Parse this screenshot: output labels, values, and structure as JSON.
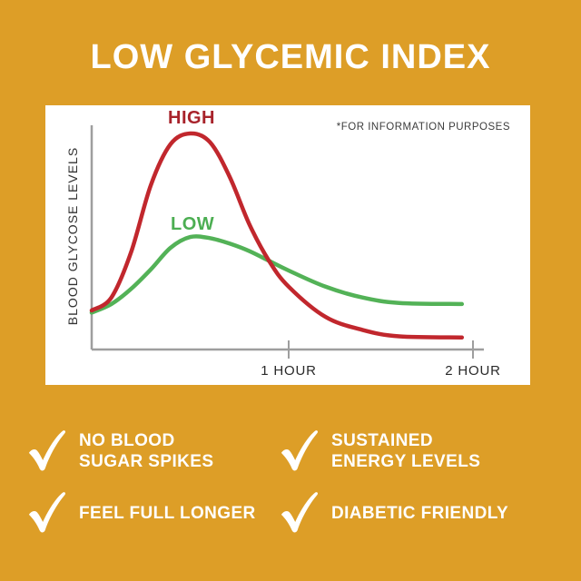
{
  "title": "LOW GLYCEMIC INDEX",
  "chart": {
    "note": "*FOR INFORMATION PURPOSES",
    "y_axis_label": "BLOOD GLYCOSE LEVELS"
  },
  "chart_data": {
    "type": "line",
    "title": "LOW GLYCEMIC INDEX",
    "ylabel": "BLOOD GLYCOSE LEVELS",
    "xlabel": "",
    "x_unit": "hours",
    "x_tick_labels": [
      "1 HOUR",
      "2 HOUR"
    ],
    "x_tick_values": [
      1,
      2
    ],
    "annotation": "*FOR INFORMATION PURPOSES",
    "y_axis_scale": "relative glucose level 0-100 (axis unlabeled in source)",
    "grid": false,
    "legend_position": "labels above curves",
    "series": [
      {
        "name": "LOW",
        "color": "#53b257",
        "label_color": "#4cae52",
        "x": [
          0,
          0.1,
          0.2,
          0.3,
          0.4,
          0.5,
          0.6,
          0.7,
          0.8,
          0.9,
          1.0,
          1.2,
          1.4,
          1.6,
          1.94
        ],
        "y": [
          17,
          21,
          28,
          37,
          47,
          52,
          51.5,
          49,
          45.5,
          41,
          36.5,
          29,
          24,
          21.5,
          21
        ]
      },
      {
        "name": "HIGH",
        "color": "#c1272d",
        "label_color": "#a8232b",
        "x": [
          0,
          0.1,
          0.2,
          0.3,
          0.4,
          0.5,
          0.6,
          0.7,
          0.8,
          0.9,
          1.0,
          1.2,
          1.4,
          1.6,
          1.94
        ],
        "y": [
          18,
          24,
          45,
          76,
          95,
          100,
          96,
          80,
          58,
          41,
          29,
          15,
          9,
          6,
          5.5
        ]
      }
    ]
  },
  "benefits": [
    {
      "lines": [
        "NO BLOOD",
        "SUGAR SPIKES"
      ]
    },
    {
      "lines": [
        "SUSTAINED",
        "ENERGY LEVELS"
      ]
    },
    {
      "lines": [
        "FEEL FULL LONGER"
      ]
    },
    {
      "lines": [
        "DIABETIC FRIENDLY"
      ]
    }
  ],
  "colors": {
    "background": "#dd9e27",
    "panel": "#ffffff",
    "title_text": "#ffffff",
    "axis": "#9e9e9e",
    "note_text": "#3c3c3c",
    "high_curve": "#c1272d",
    "high_label": "#a8232b",
    "low_curve": "#53b257",
    "low_label": "#4cae52",
    "benefit_text": "#ffffff"
  }
}
